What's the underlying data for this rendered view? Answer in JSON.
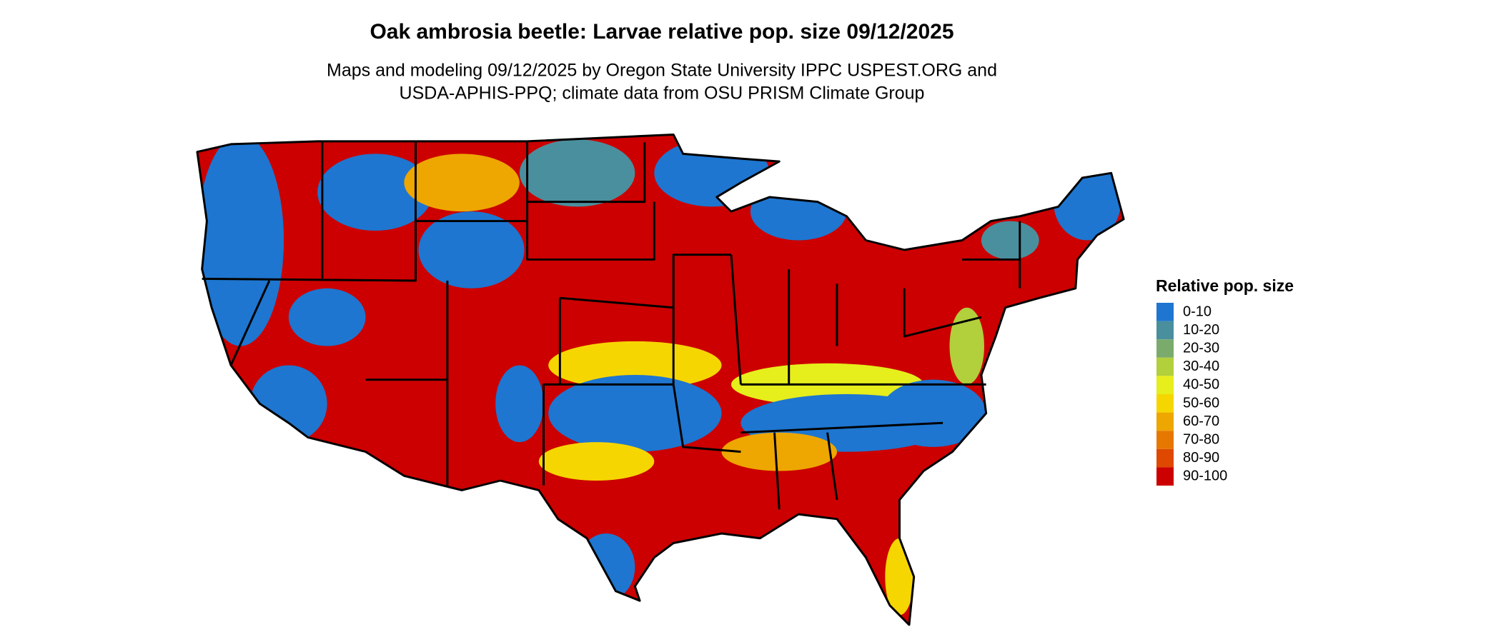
{
  "title": "Oak ambrosia beetle: Larvae relative pop. size 09/12/2025",
  "subtitle": [
    "Maps and modeling 09/12/2025 by Oregon State University IPPC USPEST.ORG and",
    "USDA-APHIS-PPQ; climate data from OSU PRISM Climate Group"
  ],
  "legend": {
    "title": "Relative pop. size",
    "items": [
      {
        "label": "0-10",
        "color": "#1e76d0"
      },
      {
        "label": "10-20",
        "color": "#4a8f9e"
      },
      {
        "label": "20-30",
        "color": "#7aab6c"
      },
      {
        "label": "30-40",
        "color": "#b2cf3c"
      },
      {
        "label": "40-50",
        "color": "#e6ee1c"
      },
      {
        "label": "50-60",
        "color": "#f6d600"
      },
      {
        "label": "60-70",
        "color": "#eea600"
      },
      {
        "label": "70-80",
        "color": "#e67800"
      },
      {
        "label": "80-90",
        "color": "#de4800"
      },
      {
        "label": "90-100",
        "color": "#cc0000"
      }
    ]
  }
}
